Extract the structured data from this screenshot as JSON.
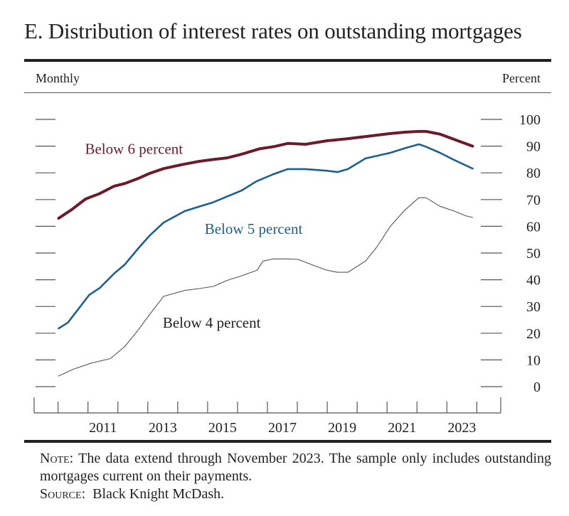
{
  "figure": {
    "title": "E.  Distribution of interest rates on outstanding mortgages",
    "frequency_label": "Monthly",
    "unit_label": "Percent",
    "note_label": "Note:",
    "note_text": " The data extend through November 2023. The sample only includes outstanding mortgages current on their payments.",
    "source_label": "Source:",
    "source_text": "  Black Knight McDash."
  },
  "chart_data": {
    "type": "line",
    "title": "Distribution of interest rates on outstanding mortgages",
    "xlabel": "",
    "ylabel": "Percent",
    "frequency": "Monthly",
    "xlim": [
      2009.2,
      2024.8
    ],
    "ylim": [
      0,
      100
    ],
    "y_ticks": [
      0,
      10,
      20,
      30,
      40,
      50,
      60,
      70,
      80,
      90,
      100
    ],
    "x_tick_boundaries": [
      2010,
      2011,
      2012,
      2013,
      2014,
      2015,
      2016,
      2017,
      2018,
      2019,
      2020,
      2021,
      2022,
      2023,
      2024
    ],
    "x_tick_labels": [
      "2011",
      "2013",
      "2015",
      "2017",
      "2019",
      "2021",
      "2023"
    ],
    "grid": false,
    "legend": "inline labels",
    "series": [
      {
        "name": "Below 6 percent",
        "color": "#6b1c2b",
        "label_position": [
          2010.9,
          89
        ],
        "x": [
          2010.02,
          2010.45,
          2010.92,
          2011.4,
          2011.87,
          2012.23,
          2012.7,
          2013.06,
          2013.53,
          2014.24,
          2014.72,
          2015.19,
          2015.66,
          2016.14,
          2016.73,
          2017.2,
          2017.68,
          2018.27,
          2018.98,
          2019.69,
          2020.28,
          2021.11,
          2021.59,
          2022.06,
          2022.3,
          2022.77,
          2023.25,
          2023.86
        ],
        "values": [
          63.0,
          66.2,
          70.2,
          72.3,
          75.0,
          76.0,
          78.0,
          79.8,
          81.6,
          83.3,
          84.3,
          85.0,
          85.6,
          87.0,
          89.0,
          89.8,
          91.0,
          90.7,
          92.0,
          92.8,
          93.6,
          94.7,
          95.2,
          95.5,
          95.5,
          94.5,
          92.5,
          90.0
        ]
      },
      {
        "name": "Below 5 percent",
        "color": "#1f5f8b",
        "label_position": [
          2014.9,
          59
        ],
        "x": [
          2010.02,
          2010.33,
          2010.64,
          2011.04,
          2011.4,
          2011.87,
          2012.23,
          2012.7,
          2013.06,
          2013.53,
          2014.24,
          2014.72,
          2015.19,
          2015.66,
          2016.14,
          2016.64,
          2017.2,
          2017.68,
          2018.27,
          2018.98,
          2019.34,
          2019.69,
          2020.28,
          2021.11,
          2021.59,
          2022.06,
          2022.3,
          2022.77,
          2023.25,
          2023.86
        ],
        "values": [
          21.8,
          24.0,
          28.5,
          34.3,
          37.0,
          42.3,
          45.7,
          52.0,
          56.5,
          61.4,
          65.7,
          67.4,
          69.0,
          71.2,
          73.4,
          76.9,
          79.5,
          81.4,
          81.4,
          80.8,
          80.3,
          81.4,
          85.4,
          87.5,
          89.2,
          90.7,
          89.8,
          87.5,
          84.8,
          81.6
        ]
      },
      {
        "name": "Below 4 percent",
        "color": "#555555",
        "label_position": [
          2013.5,
          24
        ],
        "x": [
          2010.02,
          2010.5,
          2011.11,
          2011.75,
          2012.23,
          2012.7,
          2013.06,
          2013.53,
          2014.24,
          2014.72,
          2015.19,
          2015.66,
          2016.14,
          2016.66,
          2016.85,
          2017.2,
          2017.68,
          2018.03,
          2018.51,
          2018.98,
          2019.34,
          2019.69,
          2020.28,
          2020.64,
          2021.11,
          2021.59,
          2022.06,
          2022.3,
          2022.77,
          2023.25,
          2023.61,
          2023.86
        ],
        "values": [
          4.0,
          6.5,
          8.8,
          10.5,
          15.0,
          21.5,
          27.0,
          33.8,
          36.0,
          36.7,
          37.5,
          39.8,
          41.5,
          43.6,
          47.0,
          47.8,
          47.8,
          47.6,
          45.5,
          43.6,
          42.8,
          42.8,
          47.0,
          52.0,
          60.0,
          66.0,
          70.7,
          70.7,
          67.5,
          65.7,
          64.0,
          63.3
        ]
      }
    ]
  }
}
